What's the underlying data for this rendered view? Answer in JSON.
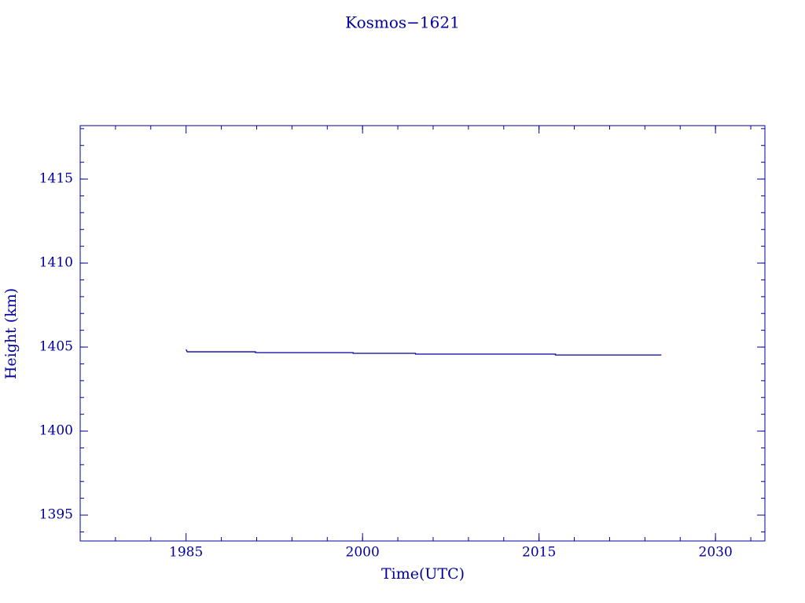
{
  "chart_data": {
    "type": "line",
    "title": "Kosmos−1621",
    "x_label": "Time(UTC)",
    "y_label": "Height (km)",
    "x": [
      1985.0,
      1985.1,
      1990.9,
      1990.9,
      1999.2,
      1999.2,
      2004.5,
      2004.5,
      2016.4,
      2016.4,
      2025.4
    ],
    "series": [
      {
        "color": "#0000a0",
        "values": [
          1404.86,
          1404.72,
          1404.72,
          1404.67,
          1404.67,
          1404.63,
          1404.63,
          1404.58,
          1404.58,
          1404.53,
          1404.53
        ]
      }
    ],
    "xlim": [
      1976,
      2034.2
    ],
    "xticks": [
      1985,
      2000,
      2015,
      2030
    ],
    "ylim": [
      1393.46,
      1418.18
    ],
    "yticks": [
      1395,
      1400,
      1405,
      1410,
      1415
    ],
    "grid": false
  }
}
